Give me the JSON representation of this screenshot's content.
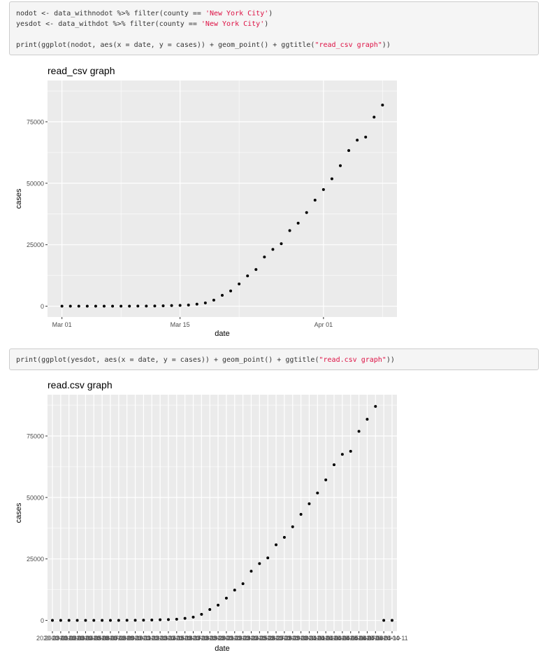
{
  "code_block_1": {
    "lines": [
      [
        {
          "t": "nodot <- data_withnodot %>% filter(county == "
        },
        {
          "t": "'New York City'",
          "s": true
        },
        {
          "t": ")"
        }
      ],
      [
        {
          "t": "yesdot <- data_withdot %>% filter(county == "
        },
        {
          "t": "'New York City'",
          "s": true
        },
        {
          "t": ")"
        }
      ],
      [],
      [
        {
          "t": "print(ggplot(nodot, aes(x = date, y = cases)) + geom_point() + ggtitle("
        },
        {
          "t": "\"read_csv graph\"",
          "s": true
        },
        {
          "t": "))"
        }
      ]
    ]
  },
  "code_block_2": {
    "lines": [
      [
        {
          "t": "print(ggplot(yesdot, aes(x = date, y = cases)) + geom_point() + ggtitle("
        },
        {
          "t": "\"read.csv graph\"",
          "s": true
        },
        {
          "t": "))"
        }
      ]
    ]
  },
  "chart_data": [
    {
      "type": "scatter",
      "title": "read_csv graph",
      "xlabel": "date",
      "ylabel": "cases",
      "x_scale": "date",
      "x_ticks": [
        "Mar 01",
        "Mar 15",
        "Apr 01"
      ],
      "y_ticks": [
        "0",
        "25000",
        "50000",
        "75000"
      ],
      "ylim": [
        -4400,
        91800
      ],
      "grid": true,
      "colors": {
        "panel": "#ebebeb",
        "grid": "#ffffff",
        "point": "#000000"
      },
      "x": [
        "2020-03-01",
        "2020-03-02",
        "2020-03-03",
        "2020-03-04",
        "2020-03-05",
        "2020-03-06",
        "2020-03-07",
        "2020-03-08",
        "2020-03-09",
        "2020-03-10",
        "2020-03-11",
        "2020-03-12",
        "2020-03-13",
        "2020-03-14",
        "2020-03-15",
        "2020-03-16",
        "2020-03-17",
        "2020-03-18",
        "2020-03-19",
        "2020-03-20",
        "2020-03-21",
        "2020-03-22",
        "2020-03-23",
        "2020-03-24",
        "2020-03-25",
        "2020-03-26",
        "2020-03-27",
        "2020-03-28",
        "2020-03-29",
        "2020-03-30",
        "2020-03-31",
        "2020-04-01",
        "2020-04-02",
        "2020-04-03",
        "2020-04-04",
        "2020-04-05",
        "2020-04-06",
        "2020-04-07",
        "2020-04-08"
      ],
      "y": [
        1,
        1,
        2,
        2,
        4,
        5,
        12,
        14,
        21,
        36,
        52,
        95,
        154,
        269,
        329,
        463,
        814,
        1339,
        2469,
        4408,
        6211,
        9045,
        12305,
        14904,
        20011,
        23112,
        25398,
        30766,
        33768,
        38087,
        43119,
        47439,
        51809,
        57159,
        63307,
        67552,
        68776,
        76876,
        81803
      ]
    },
    {
      "type": "scatter",
      "title": "read.csv graph",
      "xlabel": "date",
      "ylabel": "cases",
      "x_scale": "discrete",
      "y_ticks": [
        "0",
        "25000",
        "50000",
        "75000"
      ],
      "ylim": [
        -4400,
        91800
      ],
      "grid": true,
      "colors": {
        "panel": "#ebebeb",
        "grid": "#ffffff",
        "point": "#000000"
      },
      "x": [
        "2020-03-01",
        "2020-03-02",
        "2020-03-03",
        "2020-03-04",
        "2020-03-05",
        "2020-03-06",
        "2020-03-07",
        "2020-03-08",
        "2020-03-09",
        "2020-03-10",
        "2020-03-11",
        "2020-03-12",
        "2020-03-13",
        "2020-03-14",
        "2020-03-15",
        "2020-03-16",
        "2020-03-17",
        "2020-03-18",
        "2020-03-19",
        "2020-03-20",
        "2020-03-21",
        "2020-03-22",
        "2020-03-23",
        "2020-03-24",
        "2020-03-25",
        "2020-03-26",
        "2020-03-27",
        "2020-03-28",
        "2020-03-29",
        "2020-03-30",
        "2020-03-31",
        "2020-04-01",
        "2020-04-02",
        "2020-04-03",
        "2020-04-04",
        "2020-04-05",
        "2020-04-06",
        "2020-04-07",
        "2020-04-08",
        "2020-04-09",
        "2020-04-10",
        "2020-04-11"
      ],
      "y": [
        1,
        1,
        2,
        2,
        4,
        5,
        12,
        14,
        21,
        36,
        52,
        95,
        154,
        269,
        329,
        463,
        814,
        1339,
        2469,
        4408,
        6211,
        9045,
        12305,
        14904,
        20011,
        23112,
        25398,
        30766,
        33768,
        38087,
        43119,
        47439,
        51809,
        57159,
        63307,
        67552,
        68776,
        76876,
        81803,
        87028,
        0,
        0
      ]
    }
  ]
}
